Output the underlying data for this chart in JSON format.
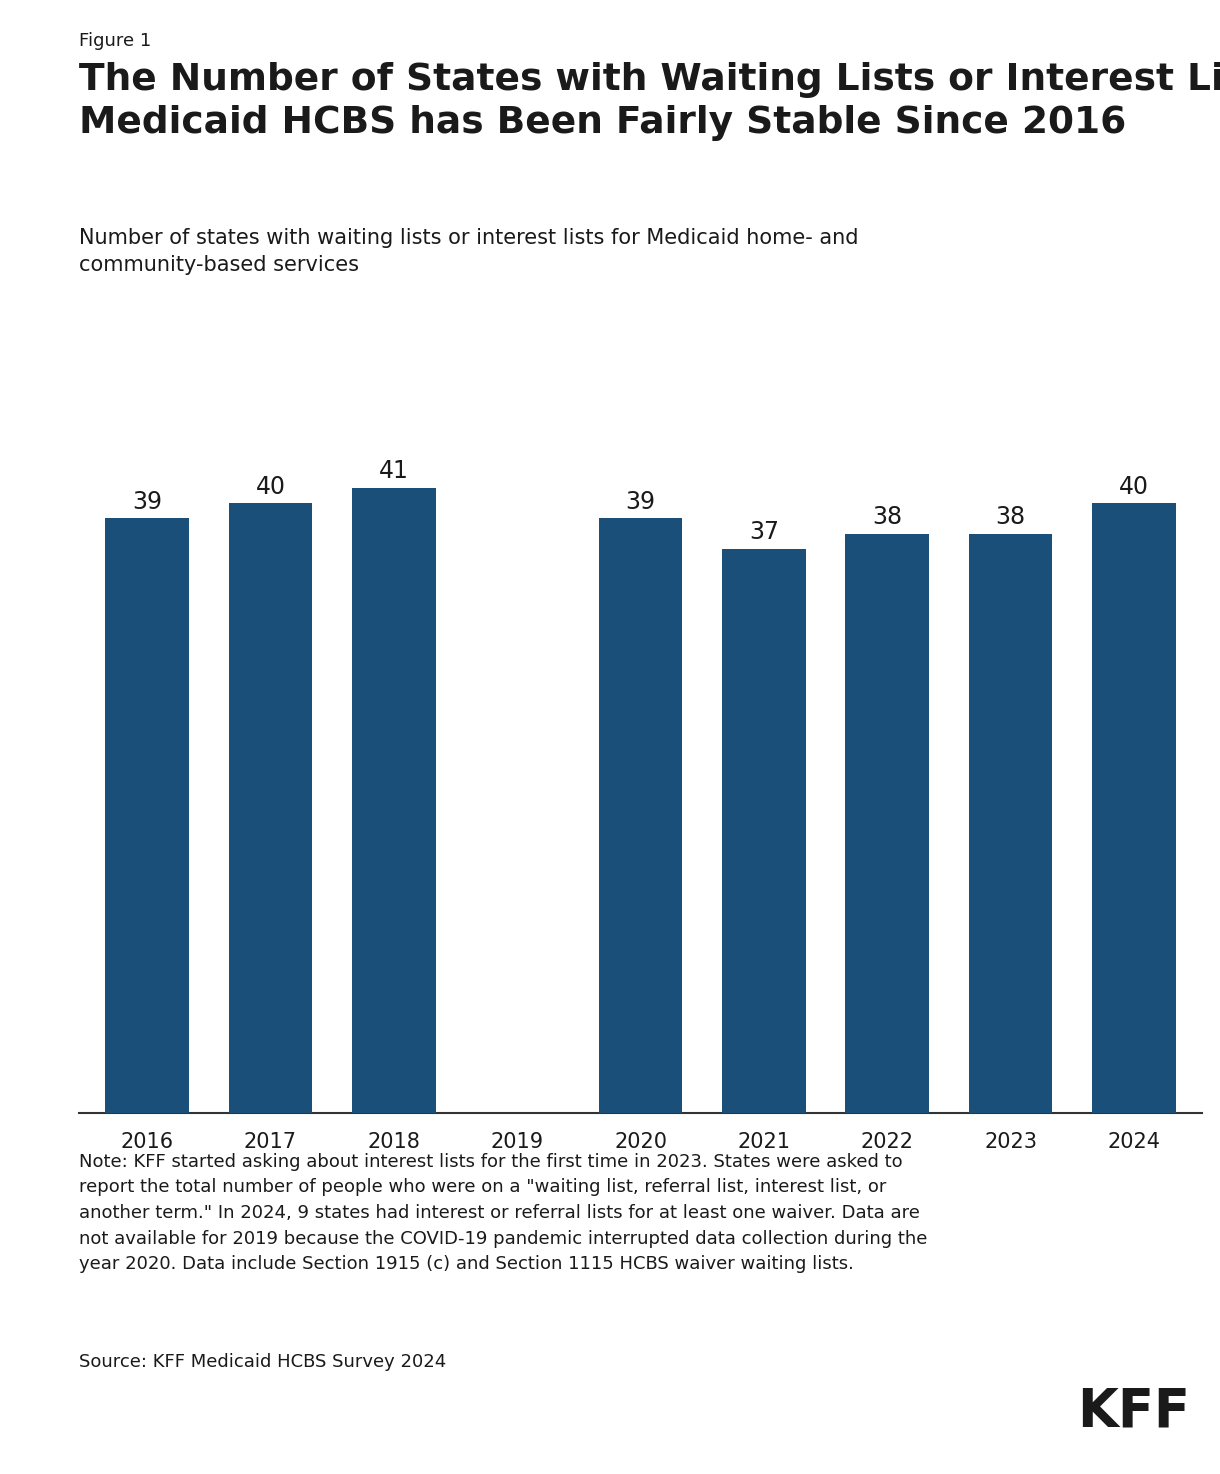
{
  "figure_label": "Figure 1",
  "title": "The Number of States with Waiting Lists or Interest Lists for\nMedicaid HCBS has Been Fairly Stable Since 2016",
  "subtitle": "Number of states with waiting lists or interest lists for Medicaid home- and\ncommunity-based services",
  "years": [
    "2016",
    "2017",
    "2018",
    "2019",
    "2020",
    "2021",
    "2022",
    "2023",
    "2024"
  ],
  "values": [
    39,
    40,
    41,
    null,
    39,
    37,
    38,
    38,
    40
  ],
  "bar_color": "#1a4f7a",
  "background_color": "#ffffff",
  "note_text": "Note: KFF started asking about interest lists for the first time in 2023. States were asked to\nreport the total number of people who were on a \"waiting list, referral list, interest list, or\nanother term.\" In 2024, 9 states had interest or referral lists for at least one waiver. Data are\nnot available for 2019 because the COVID-19 pandemic interrupted data collection during the\nyear 2020. Data include Section 1915 (c) and Section 1115 HCBS waiver waiting lists.",
  "source_text": "Source: KFF Medicaid HCBS Survey 2024",
  "kff_logo_text": "KFF",
  "ylim": [
    0,
    44
  ],
  "bar_width": 0.68,
  "value_label_fontsize": 17,
  "title_fontsize": 27,
  "subtitle_fontsize": 15,
  "axis_tick_fontsize": 15,
  "note_fontsize": 13,
  "figure_label_fontsize": 13
}
